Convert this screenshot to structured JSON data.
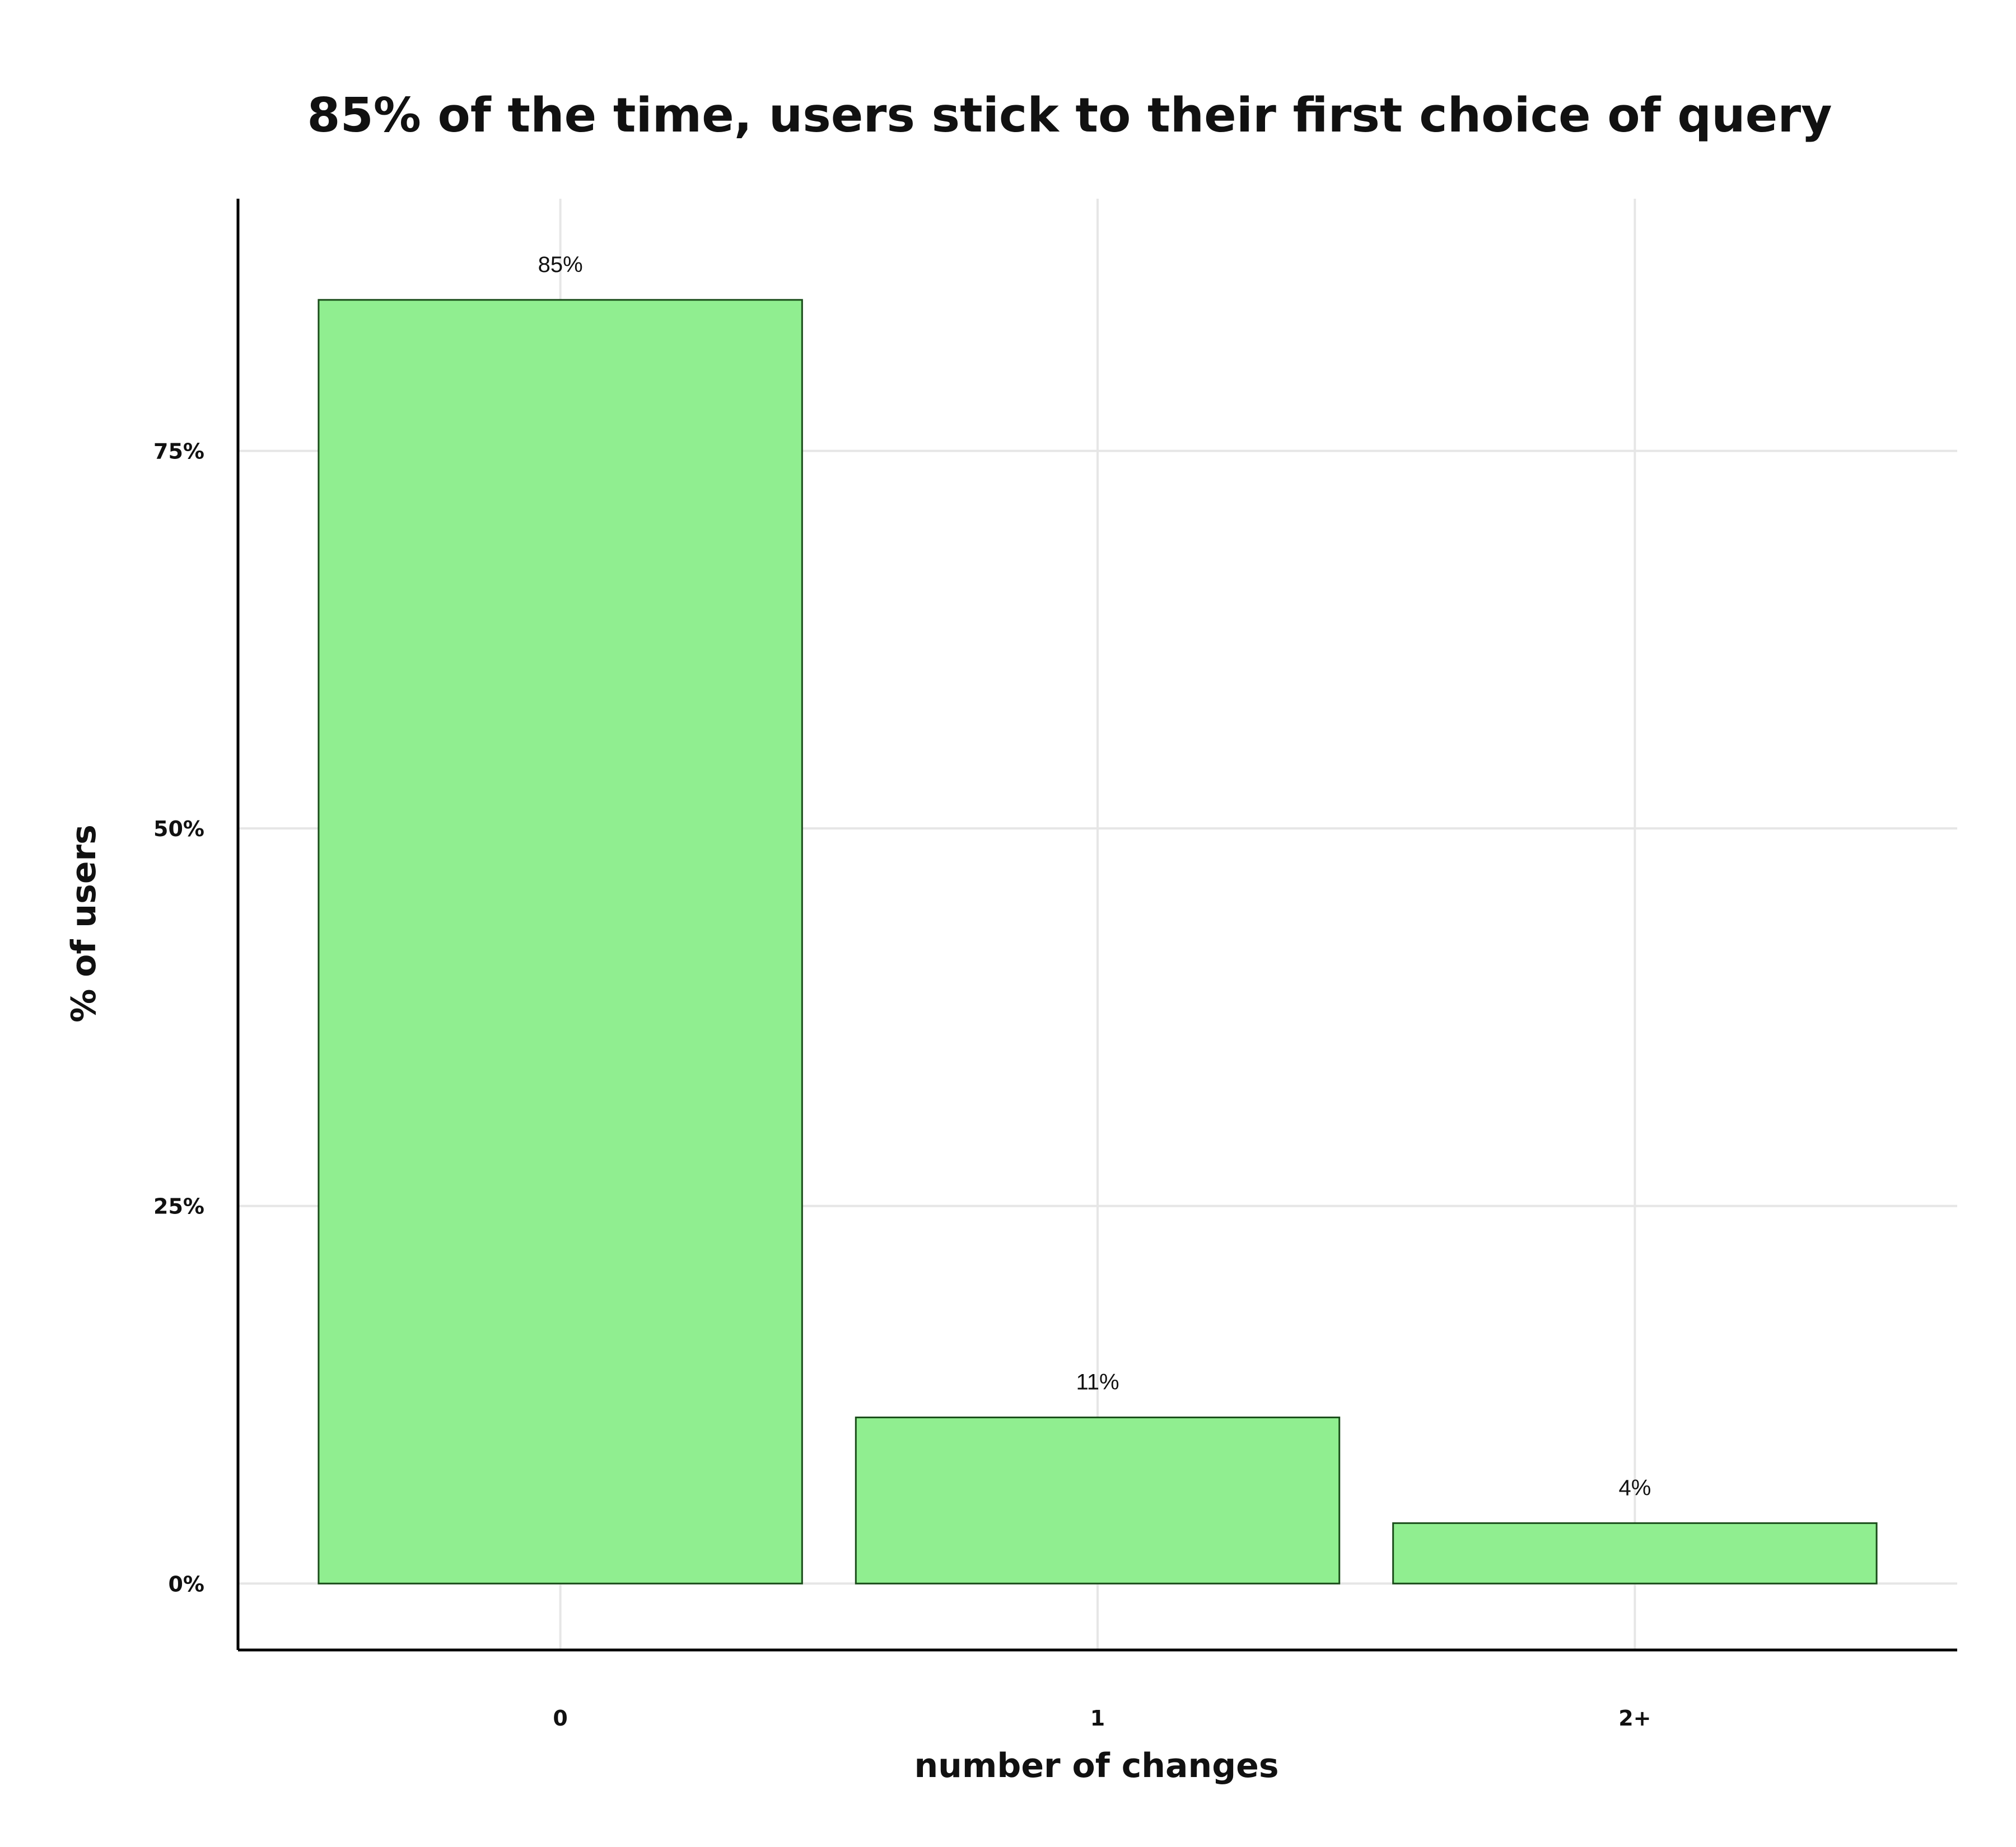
{
  "chart_data": {
    "type": "bar",
    "title": "85% of the time, users stick to their first choice of query",
    "xlabel": "number of changes",
    "ylabel": "% of users",
    "categories": [
      "0",
      "1",
      "2+"
    ],
    "values": [
      85,
      11,
      4
    ],
    "data_labels": [
      "85%",
      "11%",
      "4%"
    ],
    "y_ticks": [
      0,
      25,
      50,
      75
    ],
    "y_tick_labels": [
      "0%",
      "25%",
      "50%",
      "75%"
    ],
    "ylim": [
      -4.4,
      91.7
    ],
    "grid": true,
    "legend": "none",
    "colors": {
      "bar_fill": "#90ee90",
      "bar_stroke": "#1a4d1a",
      "grid": "#e6e6e6",
      "axis": "#000000"
    }
  }
}
